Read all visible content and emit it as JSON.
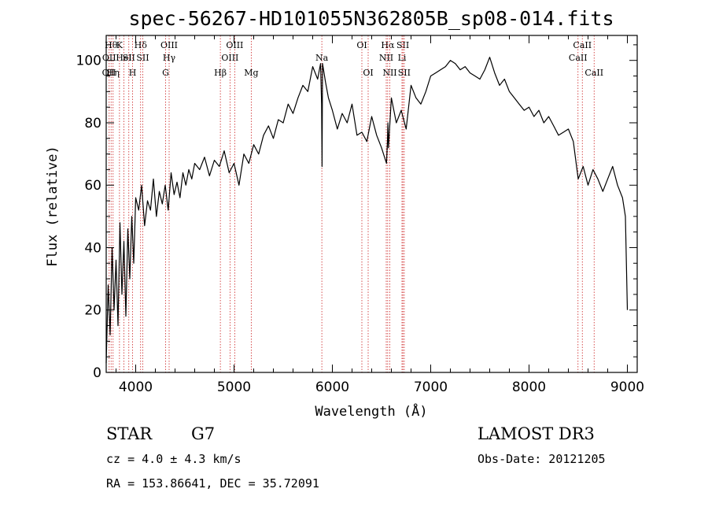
{
  "chart_data": {
    "type": "line",
    "title": "spec-56267-HD101055N362805B_sp08-014.fits",
    "xlabel": "Wavelength (Å)",
    "ylabel": "Flux (relative)",
    "xlim": [
      3700,
      9100
    ],
    "ylim": [
      0,
      108
    ],
    "xticks": [
      4000,
      5000,
      6000,
      7000,
      8000,
      9000
    ],
    "yticks": [
      0,
      20,
      40,
      60,
      80,
      100
    ],
    "grid": false,
    "series": [
      {
        "x": [
          3700,
          3720,
          3740,
          3760,
          3780,
          3800,
          3820,
          3840,
          3860,
          3880,
          3900,
          3920,
          3940,
          3960,
          3980,
          4000,
          4030,
          4060,
          4090,
          4120,
          4150,
          4180,
          4210,
          4240,
          4270,
          4300,
          4330,
          4360,
          4390,
          4420,
          4450,
          4480,
          4510,
          4540,
          4570,
          4600,
          4650,
          4700,
          4750,
          4800,
          4850,
          4900,
          4950,
          5000,
          5050,
          5100,
          5150,
          5200,
          5250,
          5300,
          5350,
          5400,
          5450,
          5500,
          5550,
          5600,
          5650,
          5700,
          5750,
          5800,
          5850,
          5880,
          5890,
          5895,
          5900,
          5930,
          5960,
          6000,
          6050,
          6100,
          6150,
          6200,
          6250,
          6300,
          6350,
          6400,
          6450,
          6500,
          6550,
          6560,
          6565,
          6570,
          6600,
          6650,
          6700,
          6750,
          6800,
          6850,
          6900,
          6950,
          7000,
          7050,
          7100,
          7150,
          7200,
          7250,
          7300,
          7350,
          7400,
          7450,
          7500,
          7550,
          7600,
          7650,
          7700,
          7750,
          7800,
          7850,
          7900,
          7950,
          8000,
          8050,
          8100,
          8150,
          8200,
          8250,
          8300,
          8350,
          8400,
          8450,
          8500,
          8550,
          8600,
          8650,
          8700,
          8750,
          8800,
          8850,
          8900,
          8950,
          8980,
          9000
        ],
        "y": [
          3,
          28,
          12,
          40,
          20,
          36,
          15,
          48,
          25,
          42,
          18,
          46,
          30,
          50,
          35,
          56,
          52,
          60,
          47,
          55,
          52,
          62,
          50,
          58,
          54,
          60,
          52,
          64,
          57,
          61,
          56,
          64,
          60,
          65,
          62,
          67,
          65,
          69,
          63,
          68,
          66,
          71,
          64,
          67,
          60,
          70,
          67,
          73,
          70,
          76,
          79,
          75,
          81,
          80,
          86,
          83,
          88,
          92,
          90,
          98,
          94,
          99,
          86,
          66,
          99,
          93,
          88,
          84,
          78,
          83,
          80,
          86,
          76,
          77,
          74,
          82,
          76,
          72,
          67,
          74,
          80,
          72,
          88,
          80,
          84,
          78,
          92,
          88,
          86,
          90,
          95,
          96,
          97,
          98,
          100,
          99,
          97,
          98,
          96,
          95,
          94,
          97,
          101,
          96,
          92,
          94,
          90,
          88,
          86,
          84,
          85,
          82,
          84,
          80,
          82,
          79,
          76,
          77,
          78,
          74,
          62,
          66,
          60,
          65,
          62,
          58,
          62,
          66,
          60,
          56,
          50,
          20
        ]
      }
    ],
    "line_markers": [
      {
        "wl": 3750,
        "label": "Hθ",
        "row": 1
      },
      {
        "wl": 3730,
        "label": "OII",
        "row": 2
      },
      {
        "wl": 3728,
        "label": "OII",
        "row": 3
      },
      {
        "wl": 3770,
        "label": "Hη",
        "row": 3
      },
      {
        "wl": 3835,
        "label": "K",
        "row": 1
      },
      {
        "wl": 3880,
        "label": "HeI",
        "row": 2
      },
      {
        "wl": 3930,
        "label": "SII",
        "row": 2
      },
      {
        "wl": 3968,
        "label": "H",
        "row": 3
      },
      {
        "wl": 4050,
        "label": "Hδ",
        "row": 1
      },
      {
        "wl": 4072,
        "label": "SII",
        "row": 2
      },
      {
        "wl": 4340,
        "label": "OIII",
        "row": 1
      },
      {
        "wl": 4340,
        "label": "Hγ",
        "row": 2
      },
      {
        "wl": 4304,
        "label": "G",
        "row": 3
      },
      {
        "wl": 4861,
        "label": "Hβ",
        "row": 3
      },
      {
        "wl": 4959,
        "label": "OIII",
        "row": 2
      },
      {
        "wl": 5007,
        "label": "OIII",
        "row": 1
      },
      {
        "wl": 5175,
        "label": "Mg",
        "row": 3
      },
      {
        "wl": 5893,
        "label": "Na",
        "row": 2
      },
      {
        "wl": 6300,
        "label": "OI",
        "row": 1
      },
      {
        "wl": 6364,
        "label": "OI",
        "row": 3
      },
      {
        "wl": 6563,
        "label": "Hα",
        "row": 1
      },
      {
        "wl": 6548,
        "label": "NII",
        "row": 2
      },
      {
        "wl": 6584,
        "label": "NII",
        "row": 3
      },
      {
        "wl": 6717,
        "label": "SII",
        "row": 1
      },
      {
        "wl": 6708,
        "label": "Li",
        "row": 2
      },
      {
        "wl": 6731,
        "label": "SII",
        "row": 3
      },
      {
        "wl": 8542,
        "label": "CaII",
        "row": 1
      },
      {
        "wl": 8498,
        "label": "CaII",
        "row": 2
      },
      {
        "wl": 8662,
        "label": "CaII",
        "row": 3
      }
    ]
  },
  "info": {
    "obj_class": "STAR",
    "subclass": "G7",
    "survey": "LAMOST DR3",
    "cz": "cz = 4.0 ± 4.3 km/s",
    "obs_date": "Obs-Date: 20121205",
    "radec": "RA = 153.86641, DEC =  35.72091"
  }
}
